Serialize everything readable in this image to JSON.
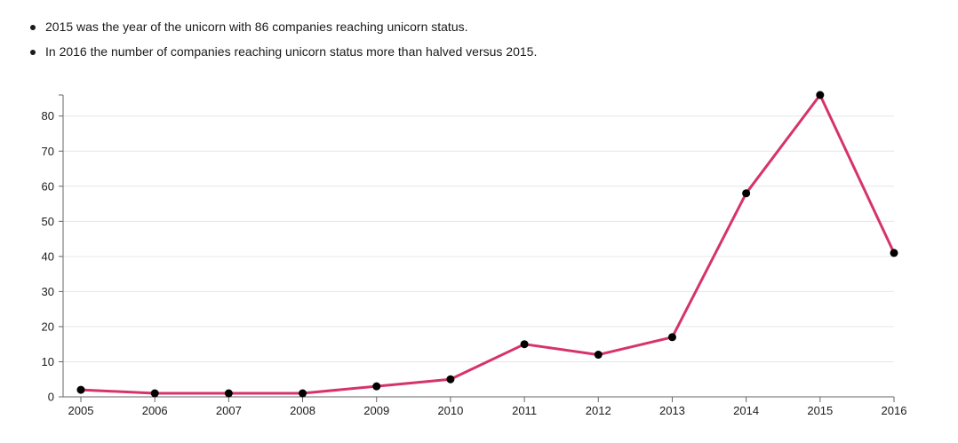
{
  "bullets": [
    "2015 was the year of the unicorn with 86 companies reaching unicorn status.",
    "In 2016 the number of companies reaching unicorn status more than halved versus 2015."
  ],
  "colors": {
    "line": "#d6336c",
    "marker": "#000000",
    "grid": "#e6e6e6",
    "axis": "#666666"
  },
  "chart_data": {
    "type": "line",
    "x": [
      "2005",
      "2006",
      "2007",
      "2008",
      "2009",
      "2010",
      "2011",
      "2012",
      "2013",
      "2014",
      "2015",
      "2016"
    ],
    "series": [
      {
        "values": [
          2,
          1,
          1,
          1,
          3,
          5,
          15,
          12,
          17,
          58,
          86,
          41
        ]
      }
    ],
    "yticks": [
      0,
      10,
      20,
      30,
      40,
      50,
      60,
      70,
      80
    ],
    "ylim": [
      0,
      86
    ],
    "grid": true,
    "legend": "none",
    "markers": true
  }
}
